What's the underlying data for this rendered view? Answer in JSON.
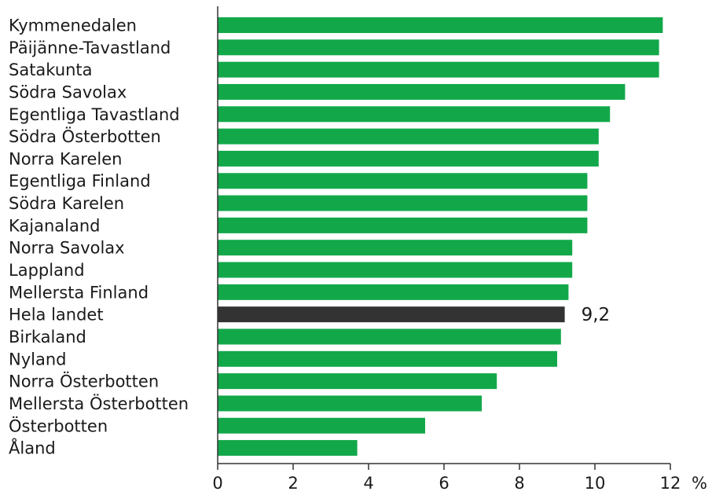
{
  "chart_data": {
    "type": "bar",
    "orientation": "horizontal",
    "categories": [
      "Kymmenedalen",
      "Päijänne-Tavastland",
      "Satakunta",
      "Södra Savolax",
      "Egentliga Tavastland",
      "Södra Österbotten",
      "Norra Karelen",
      "Egentliga Finland",
      "Södra Karelen",
      "Kajanaland",
      "Norra Savolax",
      "Lappland",
      "Mellersta Finland",
      "Hela landet",
      "Birkaland",
      "Nyland",
      "Norra Österbotten",
      "Mellersta Österbotten",
      "Österbotten",
      "Åland"
    ],
    "values": [
      11.8,
      11.7,
      11.7,
      10.8,
      10.4,
      10.1,
      10.1,
      9.8,
      9.8,
      9.8,
      9.4,
      9.4,
      9.3,
      9.2,
      9.1,
      9.0,
      7.4,
      7.0,
      5.5,
      3.7
    ],
    "highlight_category": "Hela landet",
    "data_labels": [
      {
        "category": "Hela landet",
        "text": "9,2"
      }
    ],
    "xlim": [
      0,
      12
    ],
    "x_ticks": [
      "0",
      "2",
      "4",
      "6",
      "8",
      "10",
      "12"
    ],
    "x_unit": "%",
    "grid": false,
    "colors": {
      "bar": "#12a84a",
      "highlight": "#333333"
    }
  }
}
